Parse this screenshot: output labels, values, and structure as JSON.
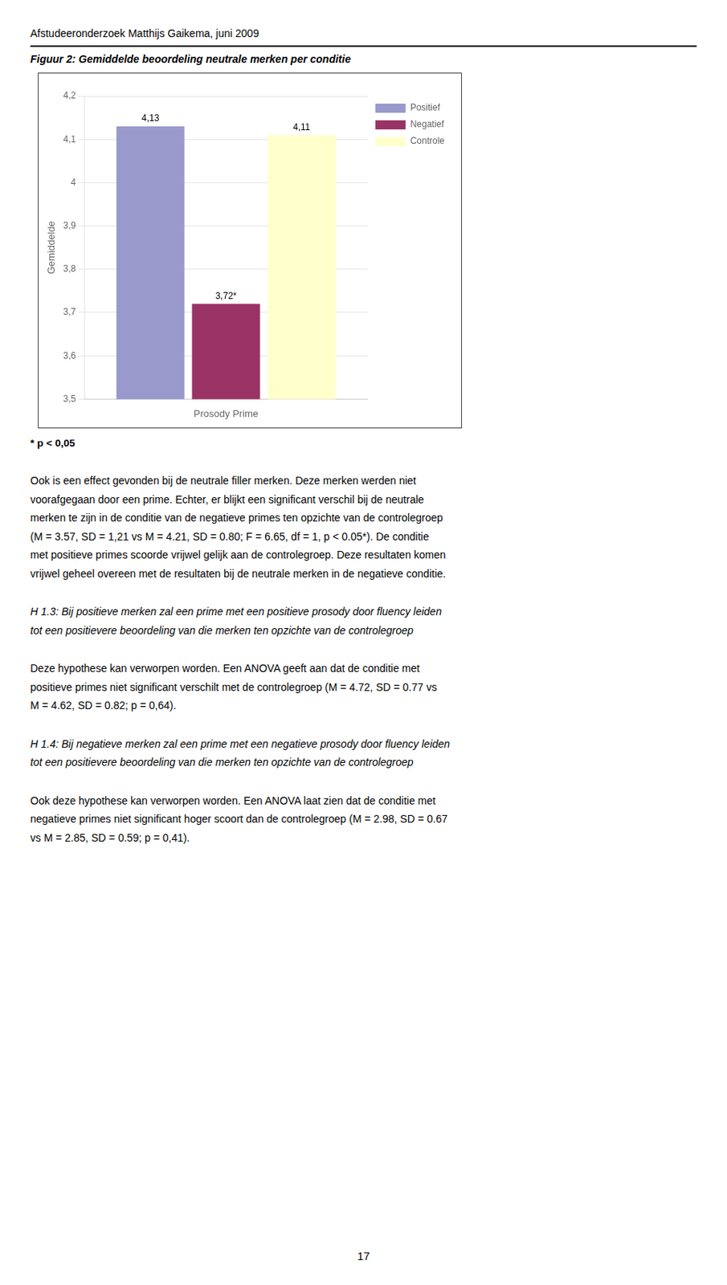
{
  "header": "Afstudeeronderzoek Matthijs Gaikema, juni 2009",
  "chart_data": {
    "type": "bar",
    "title": "Figuur 2: Gemiddelde beoordeling neutrale merken per conditie",
    "categories": [
      null
    ],
    "series": [
      {
        "name": "Positief",
        "color": "#9999cc",
        "values": [
          4.13
        ],
        "value_labels": [
          "4,13"
        ]
      },
      {
        "name": "Negatief",
        "color": "#993366",
        "values": [
          3.72
        ],
        "value_labels": [
          "3,72*"
        ]
      },
      {
        "name": "Controle",
        "color": "#ffffcc",
        "values": [
          4.11
        ],
        "value_labels": [
          "4,11"
        ]
      }
    ],
    "xlabel": "Prosody Prime",
    "ylabel": "Gemiddelde",
    "ylim": [
      3.5,
      4.2
    ],
    "yticks": [
      {
        "value": 3.5,
        "label": "3,5"
      },
      {
        "value": 3.6,
        "label": "3,6"
      },
      {
        "value": 3.7,
        "label": "3,7"
      },
      {
        "value": 3.8,
        "label": "3,8"
      },
      {
        "value": 3.9,
        "label": "3,9"
      },
      4,
      {
        "value": 4.1,
        "label": "4,1"
      },
      {
        "value": 4.2,
        "label": "4,2"
      }
    ],
    "grid": true,
    "legend": "right",
    "data_labels": true,
    "tick_labels": "y",
    "annotation": "* p < 0,05"
  },
  "paragraphs": [
    {
      "text": "Ook is een effect gevonden bij de neutrale filler merken. Deze merken werden niet\nvoorafgegaan door een prime. Echter, er blijkt een significant verschil bij de neutrale\nmerken te zijn in de conditie van de negatieve primes ten opzichte van de controlegroep\n(M = 3.57, SD = 1,21 vs M = 4.21, SD = 0.80; F = 6.65, df = 1, p < 0.05*). De conditie\nmet positieve primes scoorde vrijwel gelijk aan de controlegroep. Deze resultaten komen\nvrijwel geheel overeen met de resultaten bij de neutrale merken in de negatieve conditie.",
      "style": "normal"
    },
    {
      "text": "H 1.3: Bij positieve merken zal een prime met een positieve prosody door fluency leiden\ntot een positievere beoordeling van die merken ten opzichte van de controlegroep",
      "style": "italic"
    },
    {
      "text": "Deze hypothese kan verworpen worden. Een ANOVA geeft aan dat de conditie met\npositieve primes niet significant verschilt met de controlegroep (M = 4.72, SD = 0.77 vs\nM = 4.62, SD = 0.82; p = 0,64).",
      "style": "normal"
    },
    {
      "text": "H 1.4: Bij negatieve merken zal een prime met een negatieve prosody door fluency leiden\ntot een positievere beoordeling van die merken ten opzichte van de controlegroep",
      "style": "italic"
    },
    {
      "text": "Ook deze hypothese kan verworpen worden. Een ANOVA laat zien dat de conditie met\nnegatieve primes niet significant hoger scoort dan de controlegroep (M = 2.98, SD = 0.67\nvs M = 2.85, SD = 0.59; p = 0,41).",
      "style": "normal"
    }
  ],
  "page_number": "17"
}
